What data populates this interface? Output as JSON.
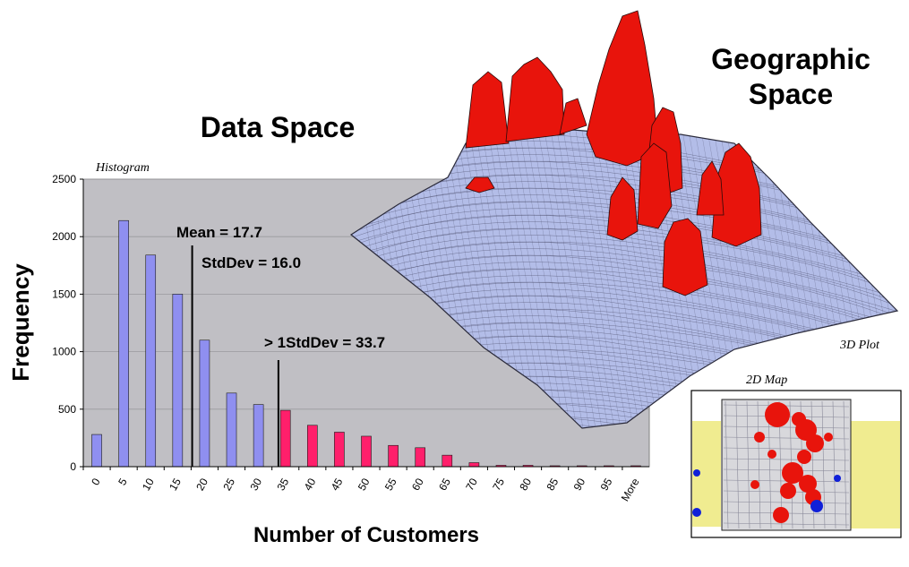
{
  "headings": {
    "data_space": "Data Space",
    "geographic_space": [
      "Geographic",
      "Space"
    ]
  },
  "labels": {
    "histogram": "Histogram",
    "plot_3d": "3D Plot",
    "map_2d": "2D Map"
  },
  "annotations": {
    "mean": "Mean = 17.7",
    "stddev": "StdDev = 16.0",
    "over_one_stddev": "> 1StdDev = 33.7"
  },
  "chart_data": {
    "type": "bar",
    "ylabel": "Frequency",
    "xlabel": "Number of Customers",
    "ylim": [
      0,
      2500
    ],
    "yticks": [
      0,
      500,
      1000,
      1500,
      2000,
      2500
    ],
    "grid": true,
    "categories": [
      "0",
      "5",
      "10",
      "15",
      "20",
      "25",
      "30",
      "35",
      "40",
      "45",
      "50",
      "55",
      "60",
      "65",
      "70",
      "75",
      "80",
      "85",
      "90",
      "95",
      "More"
    ],
    "values": [
      280,
      2140,
      1840,
      1500,
      1100,
      640,
      540,
      490,
      360,
      300,
      265,
      185,
      165,
      100,
      35,
      12,
      12,
      8,
      8,
      8,
      8
    ],
    "highlight_from_index": 7,
    "colors": {
      "normal": "#8f8ff0",
      "highlight": "#ff1f6b",
      "plot_bg": "#c0bfc4"
    },
    "reference_lines": [
      {
        "label": "Mean = 17.7",
        "x_position": 17.7
      },
      {
        "label": "> 1StdDev = 33.7",
        "x_position": 33.7
      }
    ]
  },
  "colors": {
    "terrain": "#b3bde8",
    "peak": "#e8140c",
    "map_road": "#8a8a9a",
    "map_yellow": "#f0ec90",
    "map_blue": "#1020d8"
  }
}
